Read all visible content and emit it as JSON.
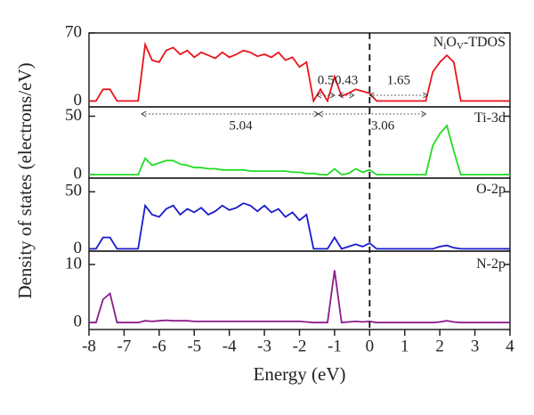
{
  "figure": {
    "ylabel": "Density of states (electrons/eV)",
    "vline": 0
  },
  "chart_data": [
    {
      "type": "line",
      "label_parts": [
        "N",
        "i",
        "O",
        "V",
        "-TDOS"
      ],
      "color": "#e8141b",
      "x": [
        -8,
        -7.8,
        -7.6,
        -7.4,
        -7.2,
        -7,
        -6.8,
        -6.6,
        -6.4,
        -6.2,
        -6,
        -5.8,
        -5.6,
        -5.4,
        -5.2,
        -5,
        -4.8,
        -4.6,
        -4.4,
        -4.2,
        -4,
        -3.8,
        -3.6,
        -3.4,
        -3.2,
        -3,
        -2.8,
        -2.6,
        -2.4,
        -2.2,
        -2,
        -1.8,
        -1.6,
        -1.4,
        -1.2,
        -1,
        -0.8,
        -0.6,
        -0.4,
        -0.2,
        0,
        0.2,
        0.4,
        0.6,
        0.8,
        1,
        1.2,
        1.4,
        1.6,
        1.8,
        2,
        2.2,
        2.4,
        2.6,
        2.8,
        3,
        3.2,
        3.4,
        3.6,
        3.8,
        4
      ],
      "values": [
        0,
        0,
        12,
        12,
        0,
        0,
        0,
        0,
        58,
        42,
        40,
        52,
        55,
        48,
        52,
        45,
        50,
        47,
        44,
        50,
        45,
        48,
        52,
        50,
        46,
        48,
        45,
        50,
        42,
        45,
        35,
        40,
        0,
        12,
        0,
        25,
        5,
        8,
        12,
        10,
        8,
        0,
        0,
        0,
        0,
        0,
        0,
        0,
        0,
        30,
        40,
        47,
        40,
        0,
        0,
        0,
        0,
        0,
        0,
        0,
        0
      ],
      "xlim": [
        -8,
        4
      ],
      "ylim": [
        -6,
        70
      ],
      "yticks": [
        0,
        70
      ],
      "annotations": [
        {
          "text": "0.5",
          "from": -1.5,
          "to": -1.0
        },
        {
          "text": "0.43",
          "from": -0.88,
          "to": -0.45
        },
        {
          "text": "1.65",
          "from": 0,
          "to": 1.65
        },
        {
          "text": "5.04",
          "from": -6.5,
          "to": -1.46
        },
        {
          "text": "3.06",
          "from": -1.46,
          "to": 1.6
        }
      ]
    },
    {
      "type": "line",
      "label_parts": [
        "Ti-3d"
      ],
      "color": "#22dd22",
      "x": [
        -8,
        -7.8,
        -7.6,
        -7.4,
        -7.2,
        -7,
        -6.8,
        -6.6,
        -6.4,
        -6.2,
        -6,
        -5.8,
        -5.6,
        -5.4,
        -5.2,
        -5,
        -4.8,
        -4.6,
        -4.4,
        -4.2,
        -4,
        -3.8,
        -3.6,
        -3.4,
        -3.2,
        -3,
        -2.8,
        -2.6,
        -2.4,
        -2.2,
        -2,
        -1.8,
        -1.6,
        -1.4,
        -1.2,
        -1,
        -0.8,
        -0.6,
        -0.4,
        -0.2,
        0,
        0.2,
        0.4,
        0.6,
        0.8,
        1,
        1.2,
        1.4,
        1.6,
        1.8,
        2,
        2.2,
        2.4,
        2.6,
        2.8,
        3,
        3.2,
        3.4,
        3.6,
        3.8,
        4
      ],
      "values": [
        0,
        0,
        0,
        0,
        0,
        0,
        0,
        0,
        14,
        8,
        10,
        12,
        12,
        9,
        8,
        6,
        6,
        5,
        5,
        4,
        4,
        4,
        4,
        3,
        3,
        3,
        3,
        3,
        3,
        2,
        2,
        1,
        1,
        0,
        0,
        5,
        0,
        1,
        5,
        2,
        4,
        0,
        0,
        0,
        0,
        0,
        0,
        0,
        0,
        25,
        35,
        42,
        20,
        0,
        0,
        0,
        0,
        0,
        0,
        0,
        0
      ],
      "xlim": [
        -8,
        4
      ],
      "ylim": [
        -3,
        58
      ],
      "yticks": [
        0,
        50
      ]
    },
    {
      "type": "line",
      "label_parts": [
        "O-2p"
      ],
      "color": "#1a1acc",
      "x": [
        -8,
        -7.8,
        -7.6,
        -7.4,
        -7.2,
        -7,
        -6.8,
        -6.6,
        -6.4,
        -6.2,
        -6,
        -5.8,
        -5.6,
        -5.4,
        -5.2,
        -5,
        -4.8,
        -4.6,
        -4.4,
        -4.2,
        -4,
        -3.8,
        -3.6,
        -3.4,
        -3.2,
        -3,
        -2.8,
        -2.6,
        -2.4,
        -2.2,
        -2,
        -1.8,
        -1.6,
        -1.4,
        -1.2,
        -1,
        -0.8,
        -0.6,
        -0.4,
        -0.2,
        0,
        0.2,
        0.4,
        0.6,
        0.8,
        1,
        1.2,
        1.4,
        1.6,
        1.8,
        2,
        2.2,
        2.4,
        2.6,
        2.8,
        3,
        3.2,
        3.4,
        3.6,
        3.8,
        4
      ],
      "values": [
        0,
        0,
        10,
        10,
        0,
        0,
        0,
        0,
        38,
        30,
        28,
        35,
        38,
        30,
        35,
        32,
        36,
        30,
        33,
        38,
        34,
        36,
        40,
        38,
        33,
        38,
        32,
        35,
        28,
        32,
        25,
        30,
        0,
        0,
        0,
        10,
        0,
        2,
        4,
        2,
        5,
        0,
        0,
        0,
        0,
        0,
        0,
        0,
        0,
        0,
        2,
        3,
        1,
        0,
        0,
        0,
        0,
        0,
        0,
        0,
        0
      ],
      "xlim": [
        -8,
        4
      ],
      "ylim": [
        -2,
        62
      ],
      "yticks": [
        0,
        50
      ]
    },
    {
      "type": "line",
      "label_parts": [
        "N-2p"
      ],
      "color": "#8b1a8b",
      "x": [
        -8,
        -7.8,
        -7.6,
        -7.4,
        -7.2,
        -7,
        -6.8,
        -6.6,
        -6.4,
        -6.2,
        -6,
        -5.8,
        -5.6,
        -5.4,
        -5.2,
        -5,
        -4.8,
        -4.6,
        -4.4,
        -4.2,
        -4,
        -3.8,
        -3.6,
        -3.4,
        -3.2,
        -3,
        -2.8,
        -2.6,
        -2.4,
        -2.2,
        -2,
        -1.8,
        -1.6,
        -1.4,
        -1.2,
        -1,
        -0.8,
        -0.6,
        -0.4,
        -0.2,
        0,
        0.2,
        0.4,
        0.6,
        0.8,
        1,
        1.2,
        1.4,
        1.6,
        1.8,
        2,
        2.2,
        2.4,
        2.6,
        2.8,
        3,
        3.2,
        3.4,
        3.6,
        3.8,
        4
      ],
      "values": [
        0,
        0,
        4,
        5,
        0,
        0,
        0,
        0,
        0.3,
        0.2,
        0.3,
        0.4,
        0.3,
        0.3,
        0.3,
        0.2,
        0.2,
        0.2,
        0.2,
        0.2,
        0.2,
        0.2,
        0.2,
        0.2,
        0.2,
        0.2,
        0.2,
        0.2,
        0.2,
        0.2,
        0.2,
        0.1,
        0,
        0,
        0,
        9,
        0,
        0.1,
        0.2,
        0.1,
        0.2,
        0,
        0,
        0,
        0,
        0,
        0,
        0,
        0,
        0,
        0.1,
        0.3,
        0.1,
        0,
        0,
        0,
        0,
        0,
        0,
        0,
        0
      ],
      "xlim": [
        -8,
        4
      ],
      "ylim": [
        -1.2,
        12.3
      ],
      "yticks": [
        0,
        10
      ],
      "xticks": [
        -8,
        -7,
        -6,
        -5,
        -4,
        -3,
        -2,
        -1,
        0,
        1,
        2,
        3,
        4
      ],
      "xlabel": "Energy (eV)"
    }
  ]
}
